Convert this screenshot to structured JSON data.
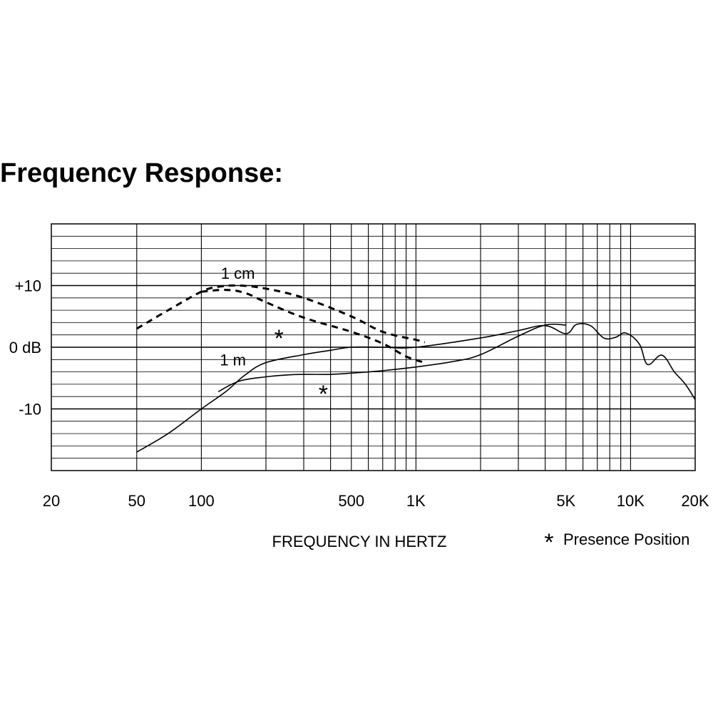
{
  "title": "Frequency Response:",
  "chart_data": {
    "type": "line",
    "title": "Frequency Response:",
    "xlabel": "FREQUENCY IN HERTZ",
    "ylabel": "",
    "x_scale": "log",
    "xlim": [
      20,
      20000
    ],
    "ylim": [
      -20,
      20
    ],
    "x_tick_values": [
      20,
      50,
      100,
      500,
      1000,
      5000,
      10000,
      20000
    ],
    "x_tick_labels": [
      "20",
      "50",
      "100",
      "500",
      "1K",
      "5K",
      "10K",
      "20K"
    ],
    "y_tick_values": [
      10,
      0,
      -10
    ],
    "y_tick_labels": [
      "+10",
      "0 dB",
      "-10"
    ],
    "grid": true,
    "annotations": {
      "one_cm": "1 cm",
      "one_m": "1 m",
      "star": "*",
      "legend_star": "*",
      "legend_text": "Presence Position"
    },
    "series": [
      {
        "name": "1 cm",
        "style": "dashed",
        "x": [
          50,
          70,
          100,
          120,
          150,
          200,
          300,
          500,
          700,
          1000,
          1100
        ],
        "y": [
          3,
          6,
          9,
          9.8,
          10,
          9.5,
          8,
          5,
          2.5,
          1.2,
          0.8
        ]
      },
      {
        "name": "1 cm Presence Position",
        "style": "dashed",
        "x": [
          100,
          130,
          160,
          200,
          300,
          500,
          700,
          900,
          1100
        ],
        "y": [
          9,
          9.3,
          8.8,
          7.3,
          4.8,
          2.5,
          0.6,
          -1.5,
          -2.5
        ]
      },
      {
        "name": "1 m",
        "style": "solid",
        "x": [
          50,
          70,
          100,
          130,
          160,
          200,
          300,
          400,
          500,
          700,
          1000,
          2000,
          3000,
          4000,
          5000,
          5600,
          6500,
          7500,
          8500,
          9500,
          11000,
          12000,
          14000,
          16000,
          18000,
          20000
        ],
        "y": [
          -17,
          -14,
          -10,
          -7.2,
          -4.5,
          -2.5,
          -1.2,
          -0.5,
          0,
          0,
          0,
          1.5,
          2.7,
          3.5,
          2.2,
          3.7,
          3.5,
          1.5,
          1.6,
          2.3,
          0.5,
          -2.8,
          -1.3,
          -4,
          -6,
          -8.5
        ]
      },
      {
        "name": "1 m Presence Position",
        "style": "solid",
        "x": [
          120,
          150,
          200,
          250,
          300,
          400,
          500,
          700,
          1000,
          1500,
          2000,
          3000,
          4000,
          5000
        ],
        "y": [
          -7.2,
          -5.5,
          -4.8,
          -4.5,
          -4.4,
          -4.4,
          -4.2,
          -3.8,
          -3.2,
          -2.3,
          -1.2,
          1.8,
          3.6,
          3.6
        ]
      }
    ]
  }
}
